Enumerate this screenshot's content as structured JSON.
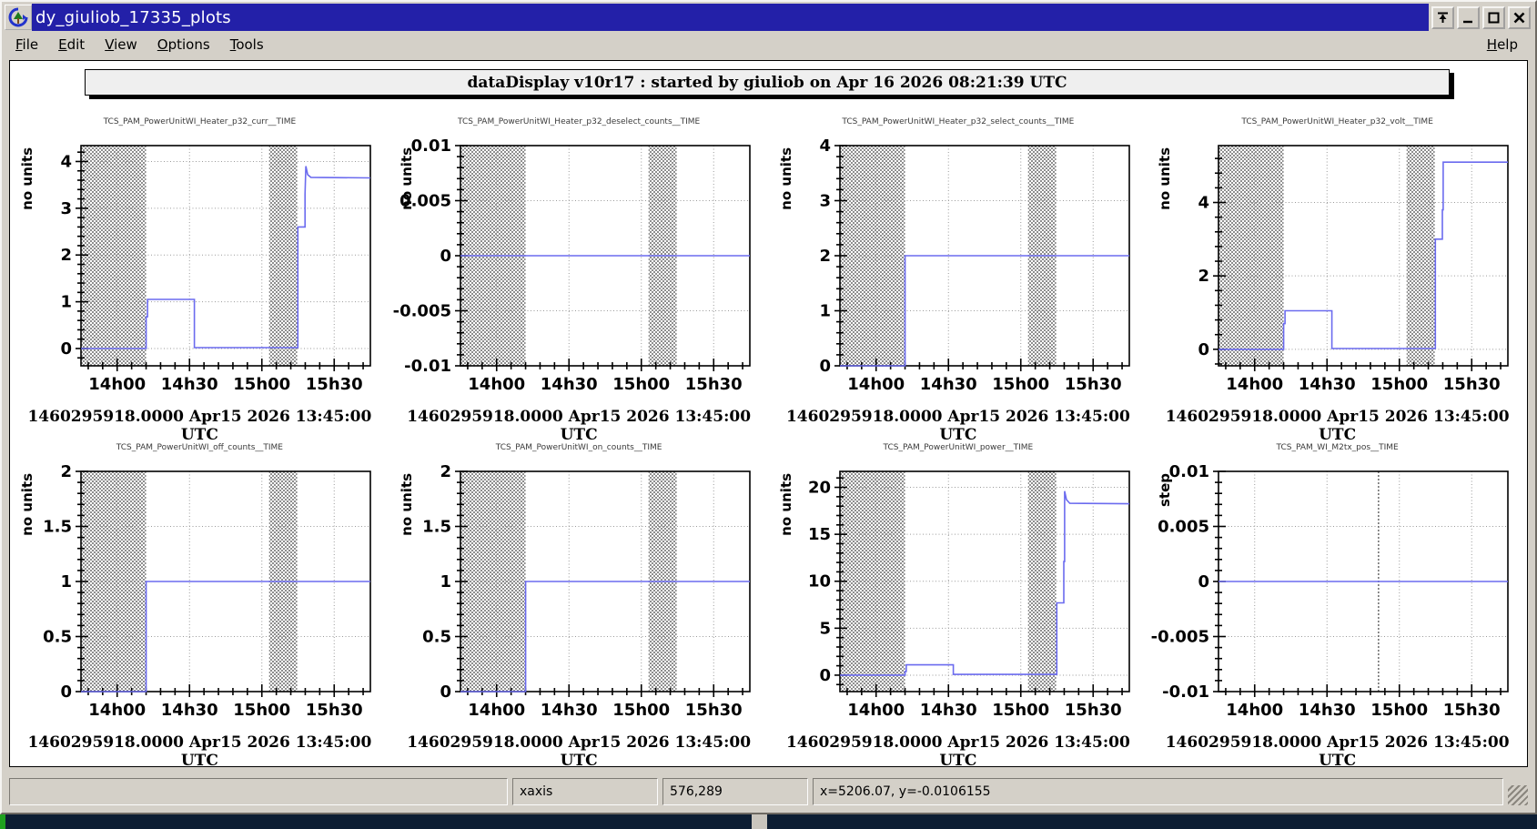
{
  "window": {
    "title": "dy_giuliob_17335_plots",
    "icon": "dataDisplay-app-icon",
    "titlebar_buttons": [
      "shade",
      "minimize",
      "maximize",
      "close"
    ]
  },
  "menubar": {
    "items": [
      "File",
      "Edit",
      "View",
      "Options",
      "Tools"
    ],
    "help": "Help"
  },
  "banner": {
    "text": "dataDisplay v10r17 : started by giuliob on Apr 16 2026 08:21:39 UTC"
  },
  "statusbar": {
    "fields": [
      "",
      "xaxis",
      "576,289",
      "x=5206.07, y=-0.0106155"
    ]
  },
  "chart_data": {
    "type": "step-line",
    "common": {
      "xlim_seconds_from_start": [
        0,
        7200
      ],
      "xticks": [
        {
          "t": 900,
          "label": "14h00"
        },
        {
          "t": 2700,
          "label": "14h30"
        },
        {
          "t": 4500,
          "label": "15h00"
        },
        {
          "t": 6300,
          "label": "15h30"
        }
      ],
      "x_minor_step": 360,
      "grid": "dotted",
      "trace_color": "#6b6bef",
      "no_data_hatches": [
        [
          0,
          1620
        ],
        [
          4680,
          5380
        ]
      ],
      "timestamp": "1460295918.0000 Apr15 2026 13:45:00 UTC"
    },
    "plots": [
      {
        "title": "TCS_PAM_PowerUnitWI_Heater_p32_curr__TIME",
        "ylabel": "no units",
        "ylim": [
          -0.37,
          4.34
        ],
        "yticks": [
          0,
          1,
          2,
          3,
          4
        ],
        "ytick_labels": [
          "0",
          "1",
          "2",
          "3",
          "4"
        ],
        "use_hatches": true,
        "points": [
          [
            0,
            0
          ],
          [
            1620,
            0
          ],
          [
            1620,
            0.68
          ],
          [
            1655,
            0.68
          ],
          [
            1655,
            1.05
          ],
          [
            2820,
            1.05
          ],
          [
            2820,
            0.02
          ],
          [
            5395,
            0.02
          ],
          [
            5395,
            2.6
          ],
          [
            5575,
            2.6
          ],
          [
            5575,
            3.3
          ],
          [
            5595,
            3.9
          ],
          [
            5640,
            3.72
          ],
          [
            5720,
            3.66
          ],
          [
            7200,
            3.65
          ]
        ]
      },
      {
        "title": "TCS_PAM_PowerUnitWI_Heater_p32_deselect_counts__TIME",
        "ylabel": "no units",
        "ylim": [
          -0.01,
          0.01
        ],
        "yticks": [
          -0.01,
          -0.005,
          0,
          0.005,
          0.01
        ],
        "ytick_labels": [
          "-0.01",
          "-0.005",
          "0",
          "0.005",
          "0.01"
        ],
        "use_hatches": true,
        "points": [
          [
            0,
            0
          ],
          [
            7200,
            0
          ]
        ]
      },
      {
        "title": "TCS_PAM_PowerUnitWI_Heater_p32_select_counts__TIME",
        "ylabel": "no units",
        "ylim": [
          0,
          4
        ],
        "yticks": [
          0,
          1,
          2,
          3,
          4
        ],
        "ytick_labels": [
          "0",
          "1",
          "2",
          "3",
          "4"
        ],
        "use_hatches": true,
        "points": [
          [
            0,
            0
          ],
          [
            1620,
            0
          ],
          [
            1620,
            2
          ],
          [
            7200,
            2
          ]
        ]
      },
      {
        "title": "TCS_PAM_PowerUnitWI_Heater_p32_volt__TIME",
        "ylabel": "no units",
        "ylim": [
          -0.45,
          5.55
        ],
        "yticks": [
          0,
          2,
          4
        ],
        "ytick_labels": [
          "0",
          "2",
          "4"
        ],
        "use_hatches": true,
        "points": [
          [
            0,
            0
          ],
          [
            1620,
            0
          ],
          [
            1620,
            0.7
          ],
          [
            1655,
            0.7
          ],
          [
            1655,
            1.05
          ],
          [
            2820,
            1.05
          ],
          [
            2820,
            0.02
          ],
          [
            5395,
            0.02
          ],
          [
            5395,
            3.0
          ],
          [
            5570,
            3.0
          ],
          [
            5570,
            3.8
          ],
          [
            5590,
            3.8
          ],
          [
            5590,
            5.1
          ],
          [
            7200,
            5.1
          ]
        ]
      },
      {
        "title": "TCS_PAM_PowerUnitWI_off_counts__TIME",
        "ylabel": "no units",
        "ylim": [
          0,
          2
        ],
        "yticks": [
          0,
          0.5,
          1,
          1.5,
          2
        ],
        "ytick_labels": [
          "0",
          "0.5",
          "1",
          "1.5",
          "2"
        ],
        "use_hatches": true,
        "points": [
          [
            0,
            0
          ],
          [
            1620,
            0
          ],
          [
            1620,
            1
          ],
          [
            7200,
            1
          ]
        ]
      },
      {
        "title": "TCS_PAM_PowerUnitWI_on_counts__TIME",
        "ylabel": "no units",
        "ylim": [
          0,
          2
        ],
        "yticks": [
          0,
          0.5,
          1,
          1.5,
          2
        ],
        "ytick_labels": [
          "0",
          "0.5",
          "1",
          "1.5",
          "2"
        ],
        "use_hatches": true,
        "points": [
          [
            0,
            0
          ],
          [
            1620,
            0
          ],
          [
            1620,
            1
          ],
          [
            7200,
            1
          ]
        ]
      },
      {
        "title": "TCS_PAM_PowerUnitWI_power__TIME",
        "ylabel": "no units",
        "ylim": [
          -1.75,
          21.7
        ],
        "yticks": [
          0,
          5,
          10,
          15,
          20
        ],
        "ytick_labels": [
          "0",
          "5",
          "10",
          "15",
          "20"
        ],
        "use_hatches": true,
        "points": [
          [
            0,
            0
          ],
          [
            1620,
            0
          ],
          [
            1620,
            0.4
          ],
          [
            1650,
            0.4
          ],
          [
            1650,
            1.1
          ],
          [
            2820,
            1.1
          ],
          [
            2820,
            0.08
          ],
          [
            5395,
            0.08
          ],
          [
            5395,
            7.7
          ],
          [
            5570,
            7.7
          ],
          [
            5570,
            12.1
          ],
          [
            5590,
            12.1
          ],
          [
            5590,
            19.6
          ],
          [
            5635,
            18.7
          ],
          [
            5720,
            18.3
          ],
          [
            7200,
            18.25
          ]
        ]
      },
      {
        "title": "TCS_PAM_WI_M2tx_pos__TIME",
        "ylabel": "step",
        "ylim": [
          -0.01,
          0.01
        ],
        "yticks": [
          -0.01,
          -0.005,
          0,
          0.005,
          0.01
        ],
        "ytick_labels": [
          "-0.01",
          "-0.005",
          "0",
          "0.005",
          "0.01"
        ],
        "use_hatches": false,
        "vlines": [
          3982
        ],
        "points": [
          [
            0,
            0
          ],
          [
            7200,
            0
          ]
        ]
      }
    ]
  }
}
